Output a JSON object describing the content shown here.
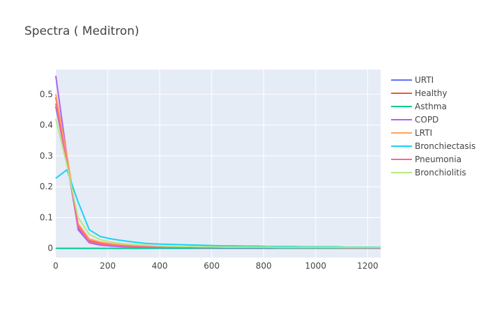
{
  "chart_data": {
    "type": "line",
    "title": "Spectra ( Meditron)",
    "xlabel": "",
    "ylabel": "",
    "xlim": [
      0,
      1250
    ],
    "ylim": [
      -0.03,
      0.58
    ],
    "x_ticks": [
      0,
      200,
      400,
      600,
      800,
      1000,
      1200
    ],
    "x_tick_labels": [
      "0",
      "200",
      "400",
      "600",
      "800",
      "1000",
      "1200"
    ],
    "y_ticks": [
      0,
      0.1,
      0.2,
      0.3,
      0.4,
      0.5
    ],
    "y_tick_labels": [
      "0",
      "0.1",
      "0.2",
      "0.3",
      "0.4",
      "0.5"
    ],
    "grid": true,
    "legend_position": "right",
    "x": [
      0,
      43,
      86,
      129,
      172,
      215,
      258,
      301,
      344,
      387,
      430,
      473,
      516,
      559,
      602,
      645,
      688,
      731,
      774,
      817,
      860,
      903,
      946,
      989,
      1032,
      1075,
      1118,
      1161,
      1204,
      1250
    ],
    "series": [
      {
        "name": "URTI",
        "color": "#636efa",
        "values": [
          0.46,
          0.28,
          0.065,
          0.02,
          0.012,
          0.009,
          0.007,
          0.006,
          0.005,
          0.005,
          0.004,
          0.004,
          0.004,
          0.004,
          0.003,
          0.003,
          0.003,
          0.003,
          0.003,
          0.003,
          0.003,
          0.003,
          0.003,
          0.002,
          0.002,
          0.002,
          0.002,
          0.002,
          0.002,
          0.002
        ]
      },
      {
        "name": "Healthy",
        "color": "#ef553b",
        "values": [
          0.49,
          0.29,
          0.075,
          0.025,
          0.016,
          0.012,
          0.009,
          0.007,
          0.006,
          0.005,
          0.005,
          0.004,
          0.004,
          0.004,
          0.004,
          0.003,
          0.003,
          0.003,
          0.003,
          0.003,
          0.003,
          0.003,
          0.003,
          0.003,
          0.002,
          0.002,
          0.002,
          0.002,
          0.002,
          0.002
        ]
      },
      {
        "name": "Asthma",
        "color": "#00cc96",
        "values": [
          0,
          0,
          0,
          0,
          0,
          0,
          0,
          0,
          0,
          0,
          0,
          0,
          0,
          0,
          0,
          0,
          0,
          0,
          0,
          0,
          0,
          0,
          0,
          0,
          0,
          0,
          0,
          0,
          0,
          0
        ]
      },
      {
        "name": "COPD",
        "color": "#ab63fa",
        "values": [
          0.56,
          0.3,
          0.06,
          0.018,
          0.01,
          0.007,
          0.005,
          0.004,
          0.004,
          0.003,
          0.003,
          0.003,
          0.003,
          0.002,
          0.002,
          0.002,
          0.002,
          0.002,
          0.002,
          0.002,
          0.002,
          0.002,
          0.002,
          0.002,
          0.002,
          0.002,
          0.001,
          0.001,
          0.001,
          0.001
        ]
      },
      {
        "name": "LRTI",
        "color": "#ffa15a",
        "values": [
          0.5,
          0.3,
          0.08,
          0.03,
          0.02,
          0.015,
          0.011,
          0.009,
          0.007,
          0.006,
          0.005,
          0.005,
          0.004,
          0.004,
          0.004,
          0.004,
          0.003,
          0.003,
          0.003,
          0.003,
          0.003,
          0.003,
          0.003,
          0.003,
          0.003,
          0.002,
          0.002,
          0.002,
          0.002,
          0.002
        ]
      },
      {
        "name": "Bronchiectasis",
        "color": "#19d3f3",
        "values": [
          0.227,
          0.255,
          0.15,
          0.06,
          0.038,
          0.03,
          0.025,
          0.02,
          0.016,
          0.014,
          0.013,
          0.012,
          0.011,
          0.01,
          0.009,
          0.008,
          0.008,
          0.007,
          0.007,
          0.006,
          0.006,
          0.006,
          0.005,
          0.005,
          0.005,
          0.005,
          0.004,
          0.004,
          0.004,
          0.004
        ]
      },
      {
        "name": "Pneumonia",
        "color": "#ff6692",
        "values": [
          0.47,
          0.28,
          0.07,
          0.022,
          0.014,
          0.01,
          0.008,
          0.006,
          0.005,
          0.005,
          0.004,
          0.004,
          0.004,
          0.003,
          0.003,
          0.003,
          0.003,
          0.003,
          0.003,
          0.003,
          0.002,
          0.002,
          0.002,
          0.002,
          0.002,
          0.002,
          0.002,
          0.002,
          0.002,
          0.002
        ]
      },
      {
        "name": "Bronchiolitis",
        "color": "#b6e880",
        "values": [
          0.42,
          0.27,
          0.1,
          0.045,
          0.028,
          0.02,
          0.015,
          0.012,
          0.01,
          0.008,
          0.007,
          0.006,
          0.006,
          0.005,
          0.005,
          0.004,
          0.004,
          0.004,
          0.004,
          0.004,
          0.003,
          0.003,
          0.003,
          0.003,
          0.003,
          0.003,
          0.003,
          0.003,
          0.003,
          0.003
        ]
      }
    ]
  }
}
